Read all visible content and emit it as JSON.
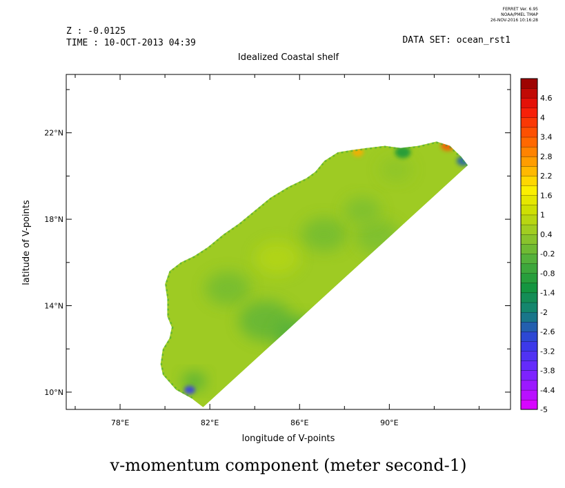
{
  "header": {
    "ferret_line1": "FERRET Ver. 6.95",
    "ferret_line2": "NOAA/PMEL TMAP",
    "ferret_line3": "26-NOV-2016 10:16:28",
    "z_label": "Z : -0.0125",
    "time_label": "TIME : 10-OCT-2013 04:39",
    "dataset_label": "DATA SET: ocean_rst1",
    "subtitle": "Idealized Coastal shelf"
  },
  "chart_data": {
    "type": "heatmap",
    "title": "v-momentum component (meter second-1)",
    "xlabel": "longitude of V-points",
    "ylabel": "latitude of V-points",
    "xlim": [
      75.6,
      95.4
    ],
    "ylim": [
      9.2,
      24.7
    ],
    "x_ticks": [
      {
        "value": 78,
        "label": "78°E"
      },
      {
        "value": 82,
        "label": "82°E"
      },
      {
        "value": 86,
        "label": "86°E"
      },
      {
        "value": 90,
        "label": "90°E"
      }
    ],
    "y_ticks": [
      {
        "value": 10,
        "label": "10°N"
      },
      {
        "value": 14,
        "label": "14°N"
      },
      {
        "value": 18,
        "label": "18°N"
      },
      {
        "value": 22,
        "label": "22°N"
      }
    ],
    "colorbar": {
      "min": -5,
      "max": 5.2,
      "step": 0.3,
      "labels": [
        "4.6",
        "4",
        "3.4",
        "2.8",
        "2.2",
        "1.6",
        "1",
        "0.4",
        "-0.2",
        "-0.8",
        "-1.4",
        "-2",
        "-2.6",
        "-3.2",
        "-3.8",
        "-4.4",
        "-5"
      ],
      "label_values": [
        4.6,
        4,
        3.4,
        2.8,
        2.2,
        1.6,
        1,
        0.4,
        -0.2,
        -0.8,
        -1.4,
        -2,
        -2.6,
        -3.2,
        -3.8,
        -4.4,
        -5
      ]
    },
    "domain_polygon": [
      [
        81.7,
        9.3
      ],
      [
        93.5,
        20.5
      ],
      [
        93.2,
        20.9
      ],
      [
        92.7,
        21.4
      ],
      [
        92.1,
        21.6
      ],
      [
        91.3,
        21.4
      ],
      [
        90.5,
        21.3
      ],
      [
        89.8,
        21.4
      ],
      [
        89.0,
        21.3
      ],
      [
        88.3,
        21.2
      ],
      [
        87.7,
        21.1
      ],
      [
        87.1,
        20.7
      ],
      [
        86.7,
        20.2
      ],
      [
        86.3,
        19.9
      ],
      [
        85.5,
        19.5
      ],
      [
        84.7,
        19.0
      ],
      [
        84.0,
        18.4
      ],
      [
        83.3,
        17.8
      ],
      [
        82.6,
        17.3
      ],
      [
        81.9,
        16.7
      ],
      [
        81.3,
        16.3
      ],
      [
        80.7,
        16.0
      ],
      [
        80.2,
        15.6
      ],
      [
        80.0,
        15.0
      ],
      [
        80.1,
        14.3
      ],
      [
        80.1,
        13.5
      ],
      [
        80.3,
        13.0
      ],
      [
        80.2,
        12.5
      ],
      [
        79.9,
        12.0
      ],
      [
        79.8,
        11.3
      ],
      [
        79.9,
        10.8
      ],
      [
        80.5,
        10.1
      ],
      [
        81.2,
        9.7
      ]
    ],
    "background_value": 0.5,
    "value_features": [
      {
        "lon": 82.8,
        "lat": 14.8,
        "v": 0.0,
        "r": 1.0
      },
      {
        "lon": 84.5,
        "lat": 13.3,
        "v": -0.2,
        "r": 1.2
      },
      {
        "lon": 86.0,
        "lat": 12.6,
        "v": -0.4,
        "r": 1.1
      },
      {
        "lon": 87.1,
        "lat": 17.3,
        "v": 0.0,
        "r": 1.0
      },
      {
        "lon": 89.5,
        "lat": 17.2,
        "v": 0.1,
        "r": 1.0
      },
      {
        "lon": 88.8,
        "lat": 18.4,
        "v": 0.1,
        "r": 0.8
      },
      {
        "lon": 85.0,
        "lat": 16.2,
        "v": 0.8,
        "r": 1.0
      },
      {
        "lon": 90.3,
        "lat": 20.3,
        "v": 0.3,
        "r": 0.7
      },
      {
        "lon": 81.3,
        "lat": 10.5,
        "v": -0.5,
        "r": 0.5
      },
      {
        "lon": 81.1,
        "lat": 10.1,
        "v": -3.0,
        "r": 0.25
      },
      {
        "lon": 93.3,
        "lat": 20.7,
        "v": -2.4,
        "r": 0.3
      },
      {
        "lon": 92.6,
        "lat": 21.4,
        "v": 3.5,
        "r": 0.3
      },
      {
        "lon": 88.6,
        "lat": 21.1,
        "v": 2.5,
        "r": 0.25
      },
      {
        "lon": 90.6,
        "lat": 21.1,
        "v": -1.2,
        "r": 0.35
      }
    ]
  }
}
